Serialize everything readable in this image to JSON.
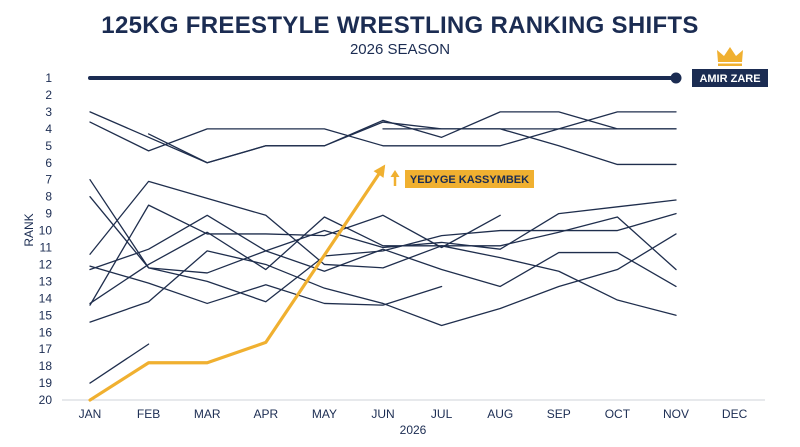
{
  "chart_data": {
    "type": "line",
    "title": "125KG FREESTYLE WRESTLING RANKING SHIFTS",
    "subtitle": "2026 SEASON",
    "xlabel": "2026",
    "ylabel": "RANK",
    "categories": [
      "JAN",
      "FEB",
      "MAR",
      "APR",
      "MAY",
      "JUN",
      "JUL",
      "AUG",
      "SEP",
      "OCT",
      "NOV",
      "DEC"
    ],
    "y_ticks": [
      1,
      2,
      3,
      4,
      5,
      6,
      7,
      8,
      9,
      10,
      11,
      12,
      13,
      14,
      15,
      16,
      17,
      18,
      19,
      20
    ],
    "ylim": [
      1,
      20
    ],
    "y_inverted": true,
    "grid": false,
    "colors": {
      "highlight": "#f0b030",
      "leader": "#1b2c52",
      "background_series": "#1f2e4d"
    },
    "highlighted": [
      {
        "name": "AMIR ZARE",
        "x": [
          "JAN",
          "NOV"
        ],
        "values": [
          1,
          1
        ],
        "icon": "crown-icon"
      },
      {
        "name": "YEDYGE KASSYMBEK",
        "x": [
          "JAN",
          "FEB",
          "MAR",
          "APR",
          "JUN"
        ],
        "values": [
          20,
          17.8,
          17.8,
          16.6,
          6.3
        ]
      }
    ],
    "series": [
      {
        "x": [
          "JAN",
          "FEB",
          "MAR",
          "APR",
          "MAY",
          "JUN",
          "JUL",
          "AUG",
          "SEP",
          "OCT",
          "NOV"
        ],
        "values": [
          3,
          4.5,
          6,
          5,
          5,
          3.5,
          4.5,
          3,
          3,
          4,
          4
        ]
      },
      {
        "x": [
          "JAN",
          "FEB",
          "MAR",
          "APR",
          "MAY",
          "JUN",
          "JUL",
          "AUG",
          "SEP",
          "OCT",
          "NOV"
        ],
        "values": [
          3.6,
          5.3,
          4,
          4,
          4,
          5,
          5,
          5,
          4,
          3,
          3
        ]
      },
      {
        "x": [
          "FEB",
          "MAR",
          "APR",
          "MAY",
          "JUN",
          "JUL",
          "AUG",
          "SEP",
          "OCT",
          "NOV"
        ],
        "values": [
          4.3,
          6,
          5,
          5,
          3.6,
          4,
          4,
          5,
          6.1,
          6.1
        ]
      },
      {
        "x": [
          "JUN",
          "JUL",
          "AUG",
          "SEP",
          "OCT",
          "NOV"
        ],
        "values": [
          4,
          4,
          4,
          4,
          4,
          4
        ]
      },
      {
        "x": [
          "JAN",
          "FEB",
          "MAR",
          "APR",
          "MAY",
          "JUN",
          "JUL",
          "AUG",
          "SEP",
          "OCT",
          "NOV"
        ],
        "values": [
          7,
          12.2,
          13,
          14.2,
          11.5,
          11.2,
          10.3,
          10,
          10,
          10,
          9
        ]
      },
      {
        "x": [
          "JAN",
          "FEB",
          "MAR",
          "APR",
          "MAY",
          "JUN",
          "JUL",
          "AUG",
          "SEP",
          "OCT",
          "NOV"
        ],
        "values": [
          8,
          12.2,
          12.5,
          11.2,
          10,
          11,
          10.7,
          11.1,
          9,
          8.6,
          8.2
        ]
      },
      {
        "x": [
          "JAN",
          "FEB",
          "MAR",
          "APR",
          "MAY",
          "JUN",
          "JUL",
          "AUG",
          "SEP",
          "OCT",
          "NOV"
        ],
        "values": [
          11.4,
          7.1,
          8.1,
          9.1,
          12,
          12.2,
          10.9,
          11.6,
          12.4,
          14.1,
          15
        ]
      },
      {
        "x": [
          "JAN",
          "FEB",
          "MAR",
          "APR",
          "MAY",
          "JUN",
          "JUL",
          "AUG",
          "SEP",
          "OCT",
          "NOV"
        ],
        "values": [
          12.3,
          11.1,
          9.1,
          11.2,
          12.4,
          11.1,
          12.3,
          13.3,
          11.3,
          11.3,
          13.3
        ]
      },
      {
        "x": [
          "JAN",
          "FEB",
          "MAR",
          "APR",
          "MAY",
          "JUN",
          "JUL",
          "AUG"
        ],
        "values": [
          14.4,
          8.5,
          10.2,
          10.2,
          10.3,
          9.1,
          11,
          9.1
        ]
      },
      {
        "x": [
          "JAN",
          "FEB",
          "MAR",
          "APR",
          "MAY",
          "JUN",
          "JUL",
          "AUG",
          "SEP",
          "OCT",
          "NOV"
        ],
        "values": [
          15.4,
          14.2,
          11.2,
          12,
          13.4,
          14.3,
          15.6,
          14.6,
          13.3,
          12.3,
          10.2
        ]
      },
      {
        "x": [
          "JAN",
          "FEB",
          "MAR",
          "APR",
          "MAY",
          "JUN",
          "JUL"
        ],
        "values": [
          12.1,
          13.1,
          14.3,
          13.2,
          14.3,
          14.4,
          13.3
        ]
      },
      {
        "x": [
          "JAN",
          "FEB",
          "MAR",
          "APR",
          "MAY",
          "JUN",
          "JUL",
          "AUG",
          "SEP",
          "OCT",
          "NOV"
        ],
        "values": [
          14.3,
          12,
          10.1,
          12.3,
          9.2,
          10.9,
          10.9,
          10.9,
          10.1,
          9.2,
          12.3
        ]
      },
      {
        "x": [
          "JAN",
          "FEB"
        ],
        "values": [
          19,
          16.7
        ]
      }
    ]
  }
}
